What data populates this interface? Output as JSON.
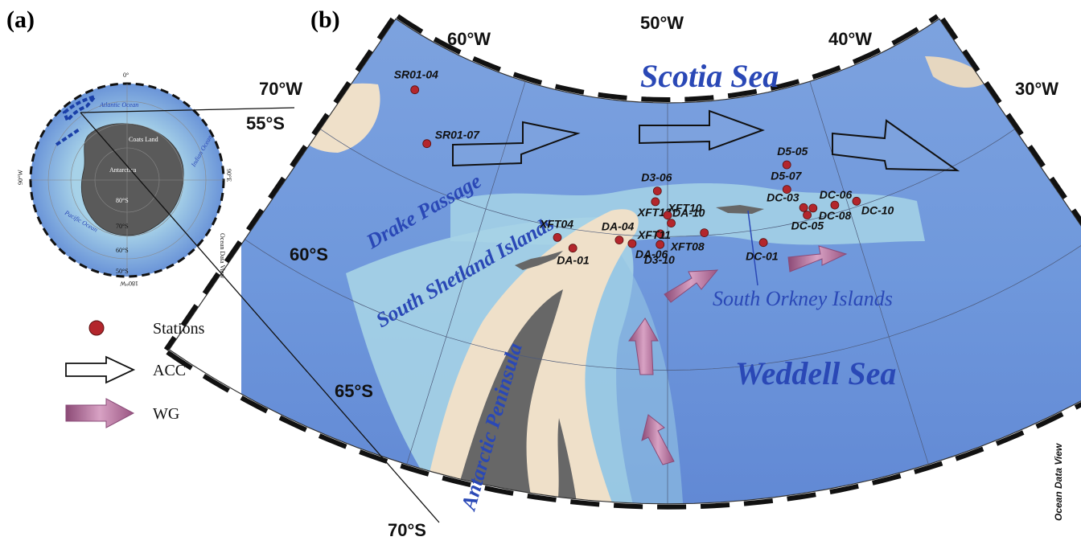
{
  "panels": {
    "a": "(a)",
    "b": "(b)"
  },
  "longitude_labels": [
    "70°W",
    "60°W",
    "50°W",
    "40°W",
    "30°W"
  ],
  "latitude_labels": [
    "55°S",
    "60°S",
    "65°S",
    "70°S"
  ],
  "regions": {
    "scotia_sea": "Scotia Sea",
    "drake_passage": "Drake Passage",
    "south_shetland": "South Shetland Islands",
    "south_orkney": "South Orkney Islands",
    "weddell_sea": "Weddell Sea",
    "antarctic_peninsula": "Antarctic Peninsula"
  },
  "stations": [
    {
      "id": "SR01-04",
      "lon": -66.5,
      "lat": -56.9
    },
    {
      "id": "SR01-07",
      "lon": -64.4,
      "lat": -58.5
    },
    {
      "id": "XFT04",
      "lon": -55.9,
      "lat": -60.4
    },
    {
      "id": "DA-01",
      "lon": -55.0,
      "lat": -60.7
    },
    {
      "id": "DA-04",
      "lon": -52.6,
      "lat": -60.2
    },
    {
      "id": "DA-06",
      "lon": -51.9,
      "lat": -60.3
    },
    {
      "id": "D3-06",
      "lon": -50.6,
      "lat": -58.3
    },
    {
      "id": "XFT13",
      "lon": -50.7,
      "lat": -58.7
    },
    {
      "id": "DA-10",
      "lon": -50.0,
      "lat": -59.2
    },
    {
      "id": "XFT10",
      "lon": -49.8,
      "lat": -59.5
    },
    {
      "id": "XFT11",
      "lon": -50.4,
      "lat": -59.9
    },
    {
      "id": "D3-10",
      "lon": -50.4,
      "lat": -60.3
    },
    {
      "id": "XFT08",
      "lon": -48.0,
      "lat": -59.9
    },
    {
      "id": "DC-01",
      "lon": -44.9,
      "lat": -60.5
    },
    {
      "id": "D5-05",
      "lon": -42.8,
      "lat": -57.8
    },
    {
      "id": "D5-07",
      "lon": -43.1,
      "lat": -58.7
    },
    {
      "id": "DC-03",
      "lon": -42.4,
      "lat": -59.5
    },
    {
      "id": "DC-05",
      "lon": -42.3,
      "lat": -59.8
    },
    {
      "id": "DC-06",
      "lon": -41.9,
      "lat": -59.6
    },
    {
      "id": "DC-08",
      "lon": -40.7,
      "lat": -59.7
    },
    {
      "id": "DC-10",
      "lon": -39.5,
      "lat": -59.8
    }
  ],
  "legend": {
    "stations": "Stations",
    "acc": "ACC",
    "wg": "WG"
  },
  "inset": {
    "top": "0°",
    "left": "90°W",
    "right": "90°E",
    "bottom": "180°W",
    "lat_labels": [
      "80°S",
      "70°S",
      "60°S",
      "50°S"
    ],
    "atlantic": "Atlantic Ocean",
    "indian": "Indian Ocean",
    "pacific": "Pacific Ocean",
    "coats": "Coats Land",
    "antarctica": "Antarctica",
    "credit": "Ocean Data View"
  },
  "credit": "Ocean Data View",
  "colors": {
    "ocean": "#6e97dc",
    "shelf": "#a9d5e7",
    "land_ice": "#efe0c9",
    "rock": "#676767",
    "station": "#b3262c",
    "label_blue": "#2a48b6",
    "wg_arrow": "#b06b95"
  }
}
